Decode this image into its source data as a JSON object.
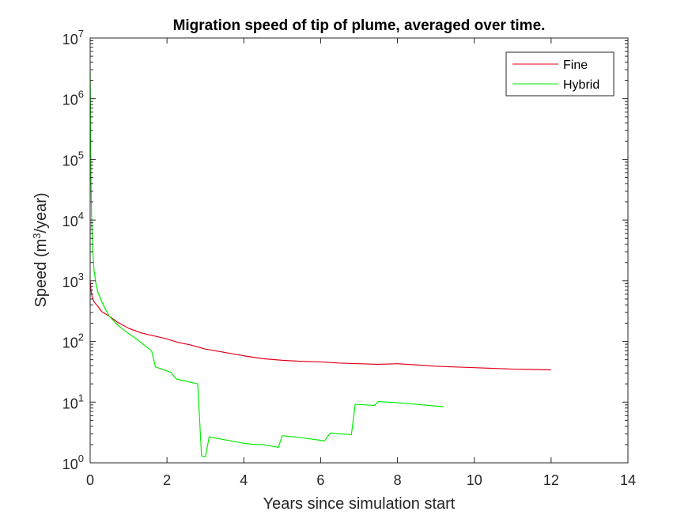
{
  "chart_data": {
    "type": "line",
    "title": "Migration speed of tip of plume, averaged over time.",
    "xlabel": "Years since simulation start",
    "ylabel": {
      "prefix": "Speed (m",
      "superscript": "3",
      "suffix": "/year)"
    },
    "xlim": [
      0,
      14
    ],
    "ylim": [
      1,
      10000000
    ],
    "yscale": "log",
    "xticks": [
      "0",
      "2",
      "4",
      "6",
      "8",
      "10",
      "12",
      "14"
    ],
    "yticks": [
      {
        "base": "10",
        "exp": "0"
      },
      {
        "base": "10",
        "exp": "1"
      },
      {
        "base": "10",
        "exp": "2"
      },
      {
        "base": "10",
        "exp": "3"
      },
      {
        "base": "10",
        "exp": "4"
      },
      {
        "base": "10",
        "exp": "5"
      },
      {
        "base": "10",
        "exp": "6"
      },
      {
        "base": "10",
        "exp": "7"
      }
    ],
    "grid": false,
    "legend_position": "top-right",
    "series": [
      {
        "name": "Fine",
        "color": "#e3001a",
        "x": [
          0,
          0.02,
          0.05,
          0.1,
          0.2,
          0.3,
          0.5,
          0.7,
          1.0,
          1.3,
          1.5,
          1.8,
          2.0,
          2.3,
          2.6,
          3.0,
          3.5,
          4.0,
          4.5,
          5.0,
          5.5,
          6.0,
          6.5,
          7.0,
          7.5,
          8.0,
          8.5,
          9.0,
          9.5,
          10.0,
          10.5,
          11.0,
          11.5,
          12.0
        ],
        "y": [
          1000,
          700,
          550,
          450,
          380,
          310,
          260,
          210,
          165,
          140,
          130,
          118,
          110,
          96,
          88,
          75,
          66,
          58,
          52,
          49,
          47,
          46,
          44,
          43,
          42,
          43,
          41,
          39,
          38,
          37,
          36,
          35,
          34.5,
          34
        ]
      },
      {
        "name": "Hybrid",
        "color": "#00ee00",
        "x": [
          0,
          0.01,
          0.02,
          0.04,
          0.07,
          0.1,
          0.15,
          0.2,
          0.3,
          0.4,
          0.5,
          0.7,
          0.9,
          1.2,
          1.6,
          1.7,
          2.1,
          2.25,
          2.8,
          2.9,
          3.0,
          3.1,
          3.2,
          4.0,
          4.3,
          4.5,
          4.9,
          5.0,
          5.5,
          6.1,
          6.25,
          6.8,
          6.9,
          7.2,
          7.4,
          7.5,
          8.0,
          9.2
        ],
        "y": [
          2700000,
          500000,
          60000,
          9000,
          3000,
          1500,
          900,
          650,
          450,
          340,
          260,
          190,
          150,
          110,
          70,
          38,
          31,
          24,
          20,
          1.3,
          1.25,
          2.7,
          2.6,
          2.1,
          2.0,
          2.0,
          1.8,
          2.8,
          2.6,
          2.3,
          3.1,
          2.9,
          9.2,
          9.0,
          8.8,
          10.2,
          9.8,
          8.4
        ]
      }
    ]
  }
}
